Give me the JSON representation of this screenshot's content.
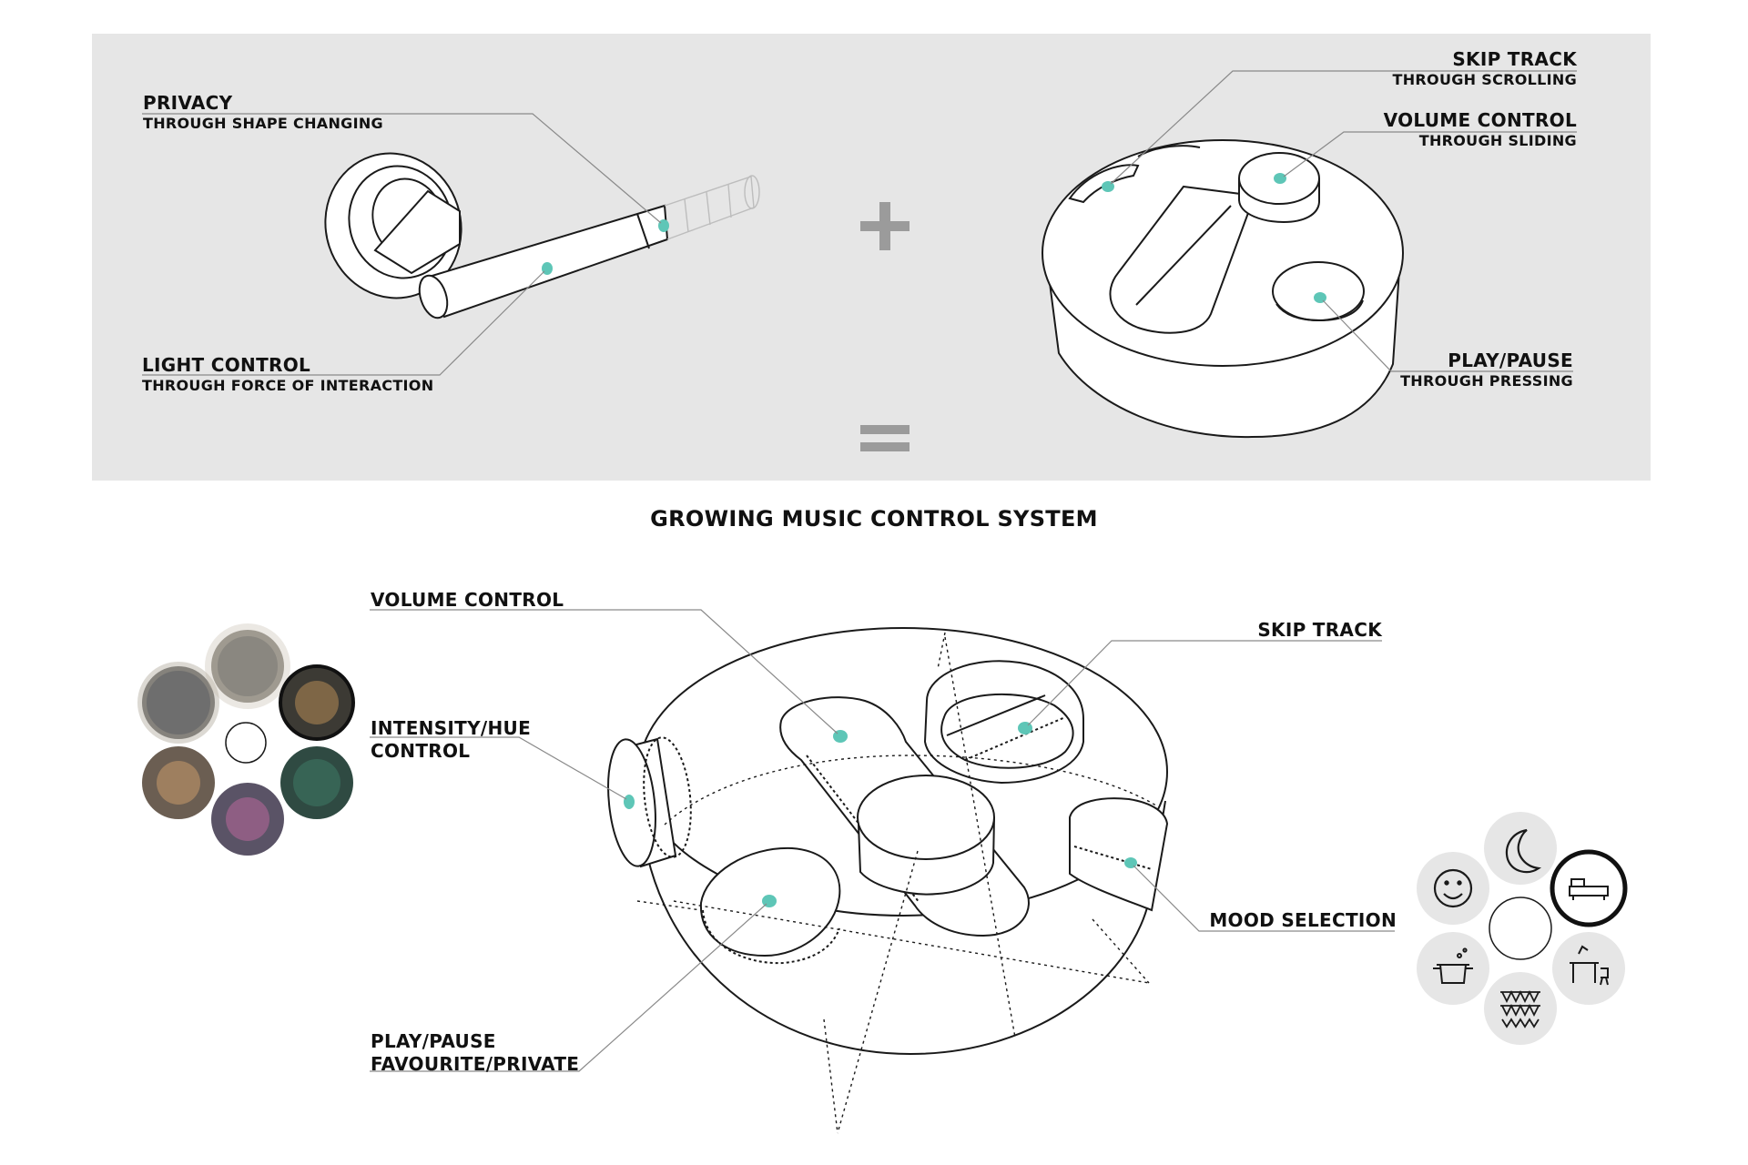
{
  "colors": {
    "panel_bg": "#e6e6e6",
    "accent_dot": "#5ec6b7",
    "line": "#1a1a1a",
    "leader": "#8a8a8a",
    "symbol": "#9b9b9b"
  },
  "top": {
    "handle_labels": {
      "privacy": {
        "title": "PRIVACY",
        "sub": "THROUGH SHAPE CHANGING"
      },
      "light_control": {
        "title": "LIGHT CONTROL",
        "sub": "THROUGH FORCE OF INTERACTION"
      }
    },
    "puck_labels": {
      "skip_track": {
        "title": "SKIP TRACK",
        "sub": "THROUGH SCROLLING"
      },
      "volume_control": {
        "title": "VOLUME CONTROL",
        "sub": "THROUGH SLIDING"
      },
      "play_pause": {
        "title": "PLAY/PAUSE",
        "sub": "THROUGH PRESSING"
      }
    },
    "plus_symbol": "plus-icon",
    "equals_symbol": "equals-icon"
  },
  "system_title": "GROWING MUSIC CONTROL SYSTEM",
  "bottom": {
    "labels": {
      "volume_control": "VOLUME CONTROL",
      "intensity_hue": [
        "INTENSITY/HUE",
        "CONTROL"
      ],
      "play_pause": [
        "PLAY/PAUSE",
        "FAVOURITE/PRIVATE"
      ],
      "skip_track": "SKIP TRACK",
      "mood_selection": "MOOD SELECTION"
    },
    "photo_wheel": [
      "friends-photo",
      "sleeping-photo",
      "living-room-tv-photo",
      "couch-photo",
      "party-photo",
      "cooking-photo"
    ],
    "mood_icons": [
      "smiley-icon",
      "moon-icon",
      "sofa-icon",
      "desk-icon",
      "bunting-icon",
      "cooking-pot-icon"
    ]
  }
}
